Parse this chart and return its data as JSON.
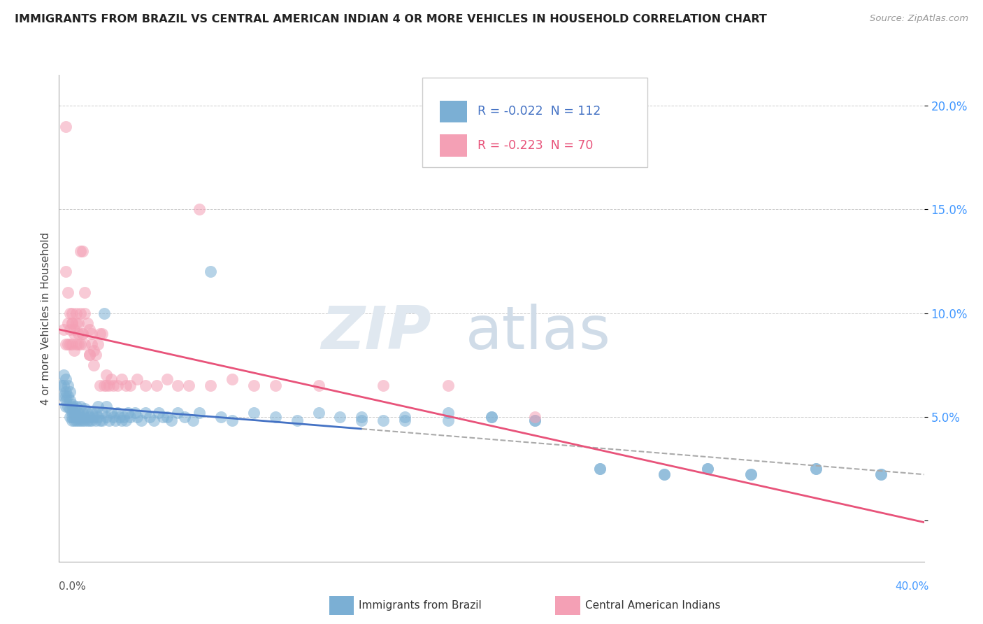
{
  "title": "IMMIGRANTS FROM BRAZIL VS CENTRAL AMERICAN INDIAN 4 OR MORE VEHICLES IN HOUSEHOLD CORRELATION CHART",
  "source": "Source: ZipAtlas.com",
  "ylabel": "4 or more Vehicles in Household",
  "xlim": [
    0.0,
    0.4
  ],
  "ylim": [
    -0.02,
    0.215
  ],
  "yticks": [
    0.0,
    0.05,
    0.1,
    0.15,
    0.2
  ],
  "ytick_labels": [
    "",
    "5.0%",
    "10.0%",
    "15.0%",
    "20.0%"
  ],
  "legend_blue_r": "-0.022",
  "legend_blue_n": "112",
  "legend_pink_r": "-0.223",
  "legend_pink_n": "70",
  "blue_color": "#7BAFD4",
  "pink_color": "#F4A0B5",
  "blue_line_color": "#4472C4",
  "pink_line_color": "#E8537A",
  "brazil_x": [
    0.001,
    0.002,
    0.002,
    0.002,
    0.003,
    0.003,
    0.003,
    0.003,
    0.003,
    0.004,
    0.004,
    0.004,
    0.005,
    0.005,
    0.005,
    0.005,
    0.006,
    0.006,
    0.006,
    0.006,
    0.006,
    0.007,
    0.007,
    0.007,
    0.007,
    0.008,
    0.008,
    0.008,
    0.009,
    0.009,
    0.009,
    0.01,
    0.01,
    0.01,
    0.011,
    0.011,
    0.012,
    0.012,
    0.012,
    0.013,
    0.013,
    0.014,
    0.014,
    0.015,
    0.015,
    0.016,
    0.017,
    0.017,
    0.018,
    0.018,
    0.019,
    0.02,
    0.02,
    0.021,
    0.022,
    0.022,
    0.023,
    0.024,
    0.025,
    0.026,
    0.027,
    0.028,
    0.029,
    0.03,
    0.031,
    0.032,
    0.033,
    0.035,
    0.036,
    0.038,
    0.04,
    0.042,
    0.044,
    0.046,
    0.048,
    0.05,
    0.052,
    0.055,
    0.058,
    0.062,
    0.065,
    0.07,
    0.075,
    0.08,
    0.09,
    0.1,
    0.11,
    0.12,
    0.13,
    0.14,
    0.15,
    0.16,
    0.18,
    0.2,
    0.22,
    0.25,
    0.28,
    0.3,
    0.32,
    0.35,
    0.38,
    0.14,
    0.16,
    0.18,
    0.2,
    0.22,
    0.25,
    0.28,
    0.3,
    0.32,
    0.35,
    0.38
  ],
  "brazil_y": [
    0.065,
    0.07,
    0.065,
    0.06,
    0.068,
    0.062,
    0.058,
    0.055,
    0.06,
    0.065,
    0.06,
    0.055,
    0.062,
    0.058,
    0.054,
    0.05,
    0.056,
    0.052,
    0.048,
    0.055,
    0.05,
    0.054,
    0.05,
    0.048,
    0.052,
    0.05,
    0.055,
    0.048,
    0.052,
    0.05,
    0.048,
    0.05,
    0.055,
    0.048,
    0.052,
    0.048,
    0.054,
    0.05,
    0.048,
    0.052,
    0.048,
    0.05,
    0.048,
    0.052,
    0.048,
    0.05,
    0.052,
    0.048,
    0.055,
    0.05,
    0.048,
    0.052,
    0.048,
    0.1,
    0.055,
    0.05,
    0.048,
    0.052,
    0.05,
    0.048,
    0.052,
    0.05,
    0.048,
    0.05,
    0.048,
    0.052,
    0.05,
    0.052,
    0.05,
    0.048,
    0.052,
    0.05,
    0.048,
    0.052,
    0.05,
    0.05,
    0.048,
    0.052,
    0.05,
    0.048,
    0.052,
    0.12,
    0.05,
    0.048,
    0.052,
    0.05,
    0.048,
    0.052,
    0.05,
    0.048,
    0.048,
    0.05,
    0.048,
    0.05,
    0.048,
    0.025,
    0.022,
    0.025,
    0.022,
    0.025,
    0.022,
    0.05,
    0.048,
    0.052,
    0.05,
    0.048,
    0.025,
    0.022,
    0.025,
    0.022,
    0.025,
    0.022
  ],
  "indian_x": [
    0.002,
    0.003,
    0.003,
    0.004,
    0.004,
    0.005,
    0.005,
    0.006,
    0.006,
    0.006,
    0.007,
    0.007,
    0.008,
    0.008,
    0.009,
    0.009,
    0.01,
    0.01,
    0.011,
    0.011,
    0.012,
    0.012,
    0.013,
    0.014,
    0.014,
    0.015,
    0.015,
    0.016,
    0.017,
    0.018,
    0.019,
    0.02,
    0.021,
    0.022,
    0.023,
    0.024,
    0.025,
    0.027,
    0.029,
    0.031,
    0.033,
    0.036,
    0.04,
    0.045,
    0.05,
    0.055,
    0.06,
    0.065,
    0.07,
    0.08,
    0.09,
    0.1,
    0.12,
    0.15,
    0.18,
    0.22,
    0.003,
    0.004,
    0.005,
    0.006,
    0.007,
    0.008,
    0.009,
    0.01,
    0.011,
    0.012,
    0.014,
    0.016,
    0.019,
    0.022
  ],
  "indian_y": [
    0.092,
    0.19,
    0.085,
    0.095,
    0.085,
    0.092,
    0.085,
    0.1,
    0.095,
    0.085,
    0.092,
    0.082,
    0.1,
    0.095,
    0.085,
    0.09,
    0.13,
    0.085,
    0.13,
    0.09,
    0.1,
    0.11,
    0.095,
    0.092,
    0.08,
    0.085,
    0.09,
    0.082,
    0.08,
    0.085,
    0.09,
    0.09,
    0.065,
    0.07,
    0.065,
    0.068,
    0.065,
    0.065,
    0.068,
    0.065,
    0.065,
    0.068,
    0.065,
    0.065,
    0.068,
    0.065,
    0.065,
    0.15,
    0.065,
    0.068,
    0.065,
    0.065,
    0.065,
    0.065,
    0.065,
    0.05,
    0.12,
    0.11,
    0.1,
    0.095,
    0.09,
    0.085,
    0.095,
    0.1,
    0.09,
    0.085,
    0.08,
    0.075,
    0.065,
    0.065
  ]
}
